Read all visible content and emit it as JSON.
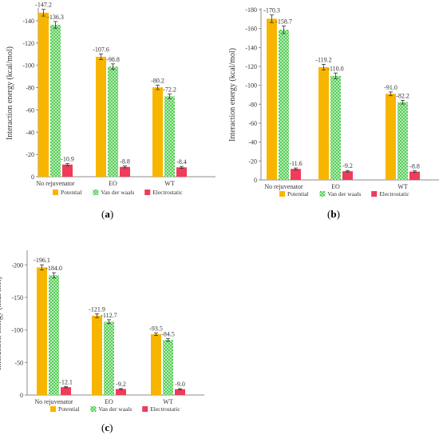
{
  "colors": {
    "potential": "#f7b500",
    "vdw": "#3cc83c",
    "vdw_hatch": "#e8f7e8",
    "electrostatic": "#ee3c5a",
    "axis": "#8c8c8c",
    "text": "#333333"
  },
  "chart_data": [
    {
      "type": "bar",
      "panel": "(a)",
      "panel_letter": "a",
      "categories": [
        "No rejuvenator",
        "EO",
        "WT"
      ],
      "ylabel": "Interaction energy (kcal/mol)",
      "ylim": [
        0,
        -150
      ],
      "yticks": [
        0,
        -20,
        -40,
        -60,
        -80,
        -100,
        -120,
        -140
      ],
      "ytick_labels": [
        "0",
        "-20",
        "-40",
        "-60",
        "-80",
        "-100",
        "-120",
        "-140"
      ],
      "error_bars": true,
      "legend_position": "bottom",
      "series": [
        {
          "name": "Potential",
          "key": "potential",
          "values": [
            -147.2,
            -107.6,
            -80.2
          ],
          "labels": [
            "-147.2",
            "-107.6",
            "-80.2"
          ],
          "errors": [
            3.0,
            2.5,
            2.0
          ]
        },
        {
          "name": "Van der waals",
          "key": "vdw",
          "values": [
            -136.3,
            -98.8,
            -72.2
          ],
          "labels": [
            "-136.3",
            "-98.8",
            "-72.2"
          ],
          "errors": [
            3.0,
            2.5,
            2.0
          ]
        },
        {
          "name": "Electrostatic",
          "key": "electrostatic",
          "values": [
            -10.9,
            -8.8,
            -8.4
          ],
          "labels": [
            "-10.9",
            "-8.8",
            "-8.4"
          ],
          "errors": [
            1.0,
            0.8,
            0.8
          ]
        }
      ]
    },
    {
      "type": "bar",
      "panel": "(b)",
      "panel_letter": "b",
      "categories": [
        "No rejuvenator",
        "EO",
        "WT"
      ],
      "ylabel": "Interaction energy (kcal/mol)",
      "ylim": [
        0,
        -180
      ],
      "yticks": [
        0,
        -20,
        -40,
        -60,
        -80,
        -100,
        -120,
        -140,
        -160,
        -180
      ],
      "ytick_labels": [
        "0",
        "-20",
        "-40",
        "-60",
        "-80",
        "-100",
        "-120",
        "-140",
        "-160",
        "-180"
      ],
      "error_bars": true,
      "legend_position": "bottom",
      "series": [
        {
          "name": "Potential",
          "key": "potential",
          "values": [
            -170.3,
            -119.2,
            -91.0
          ],
          "labels": [
            "-170.3",
            "-119.2",
            "-91.0"
          ],
          "errors": [
            4.0,
            3.0,
            2.0
          ]
        },
        {
          "name": "Van der waals",
          "key": "vdw",
          "values": [
            -158.7,
            -110.0,
            -82.2
          ],
          "labels": [
            "-158.7",
            "-110.0",
            "-82.2"
          ],
          "errors": [
            4.0,
            3.0,
            2.0
          ]
        },
        {
          "name": "Electrostatic",
          "key": "electrostatic",
          "values": [
            -11.6,
            -9.2,
            -8.8
          ],
          "labels": [
            "-11.6",
            "-9.2",
            "-8.8"
          ],
          "errors": [
            1.0,
            0.8,
            0.8
          ]
        }
      ]
    },
    {
      "type": "bar",
      "panel": "(c)",
      "panel_letter": "c",
      "categories": [
        "No rejuvenator",
        "EO",
        "WT"
      ],
      "ylabel": "Interaction energy (kcal/mol)",
      "ylim": [
        0,
        -220
      ],
      "yticks": [
        0,
        -50,
        -100,
        -150,
        -200
      ],
      "ytick_labels": [
        "0",
        "-50",
        "-100",
        "-150",
        "-200"
      ],
      "error_bars": true,
      "legend_position": "bottom",
      "series": [
        {
          "name": "Potential",
          "key": "potential",
          "values": [
            -196.1,
            -121.9,
            -93.5
          ],
          "labels": [
            "-196.1",
            "-121.9",
            "-93.5"
          ],
          "errors": [
            4.0,
            3.0,
            2.0
          ]
        },
        {
          "name": "Van der waals",
          "key": "vdw",
          "values": [
            -184.0,
            -112.7,
            -84.5
          ],
          "labels": [
            "-184.0",
            "-112.7",
            "-84.5"
          ],
          "errors": [
            4.0,
            3.0,
            2.0
          ]
        },
        {
          "name": "Electrostatic",
          "key": "electrostatic",
          "values": [
            -12.1,
            -9.2,
            -9.0
          ],
          "labels": [
            "-12.1",
            "-9.2",
            "-9.0"
          ],
          "errors": [
            1.0,
            0.8,
            0.8
          ]
        }
      ]
    }
  ]
}
